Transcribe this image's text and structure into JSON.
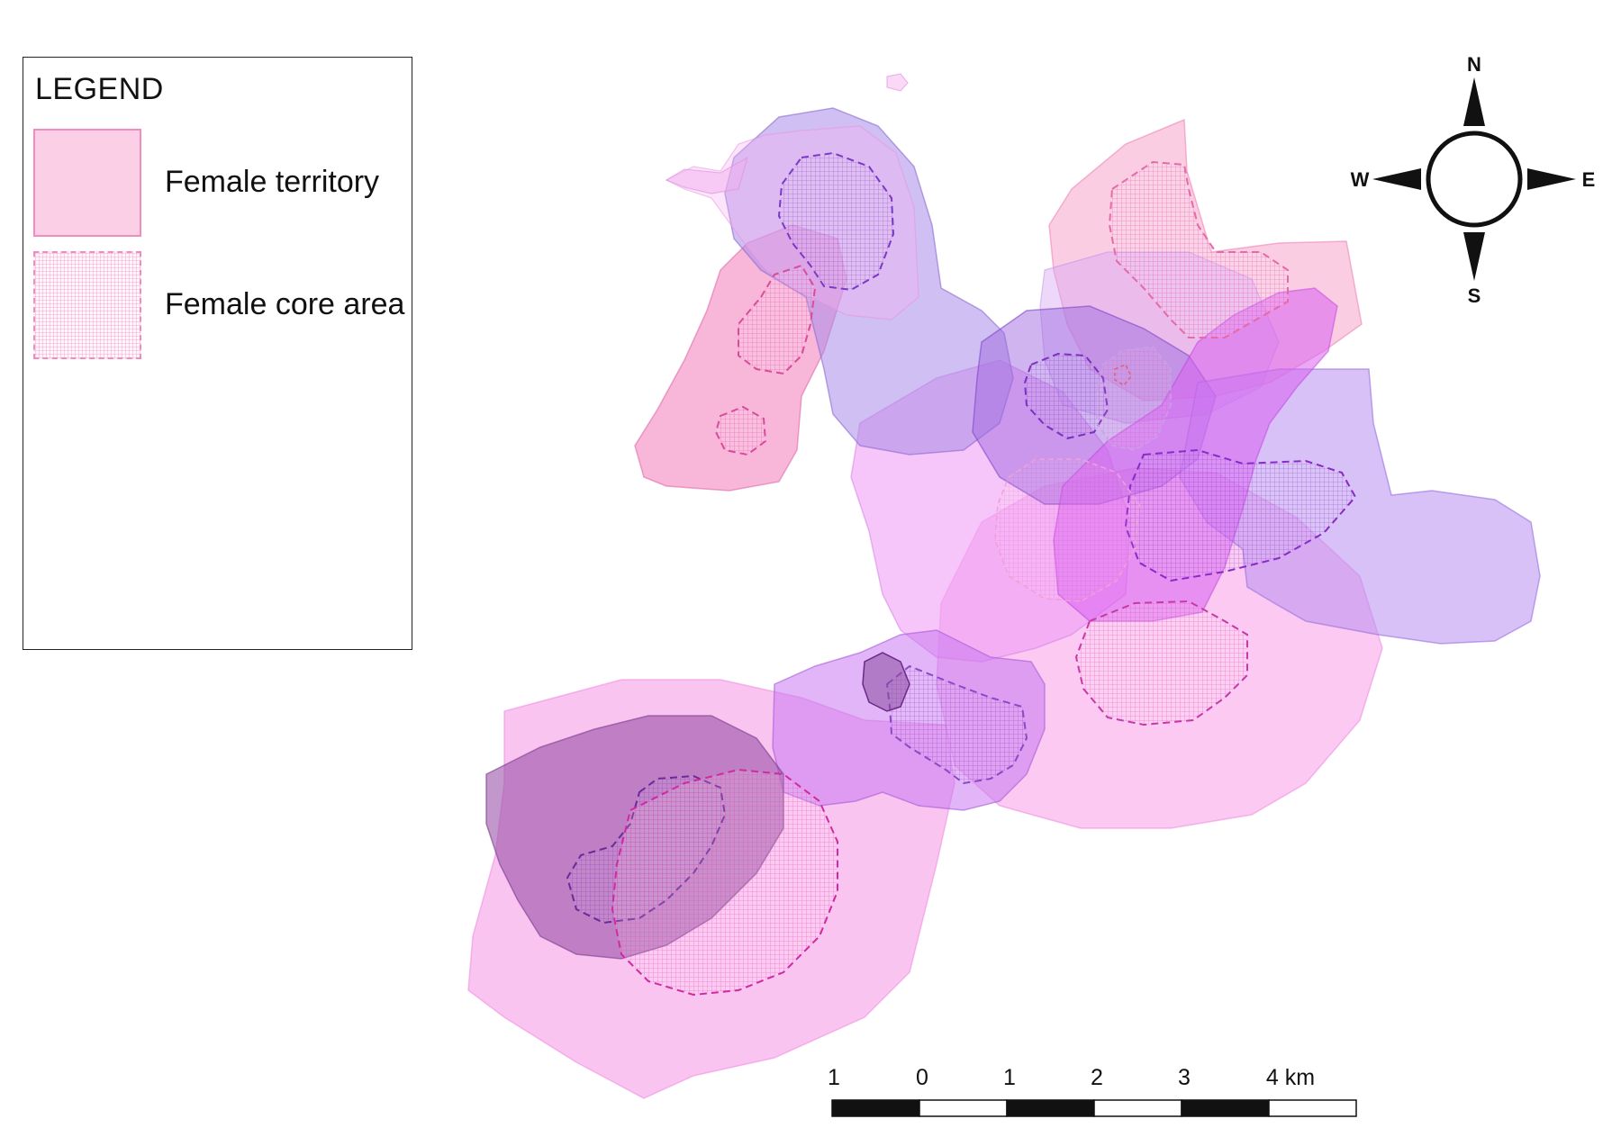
{
  "legend": {
    "title": "LEGEND",
    "items": [
      {
        "label": "Female territory",
        "symbol": "territory-swatch"
      },
      {
        "label": "Female core area",
        "symbol": "core-area-swatch"
      }
    ]
  },
  "compass": {
    "north": "N",
    "south": "S",
    "east": "E",
    "west": "W"
  },
  "scale_bar": {
    "labels": [
      "1",
      "0",
      "1",
      "2",
      "3",
      "4 km"
    ]
  },
  "colors": {
    "territory_pink": "#f9a8d4",
    "territory_magenta": "#f080f0",
    "territory_purple": "#b48ce8",
    "territory_dark_purple": "#9a5aa8",
    "core_outline_pink": "#e0409a",
    "core_outline_purple": "#7a30c0"
  }
}
